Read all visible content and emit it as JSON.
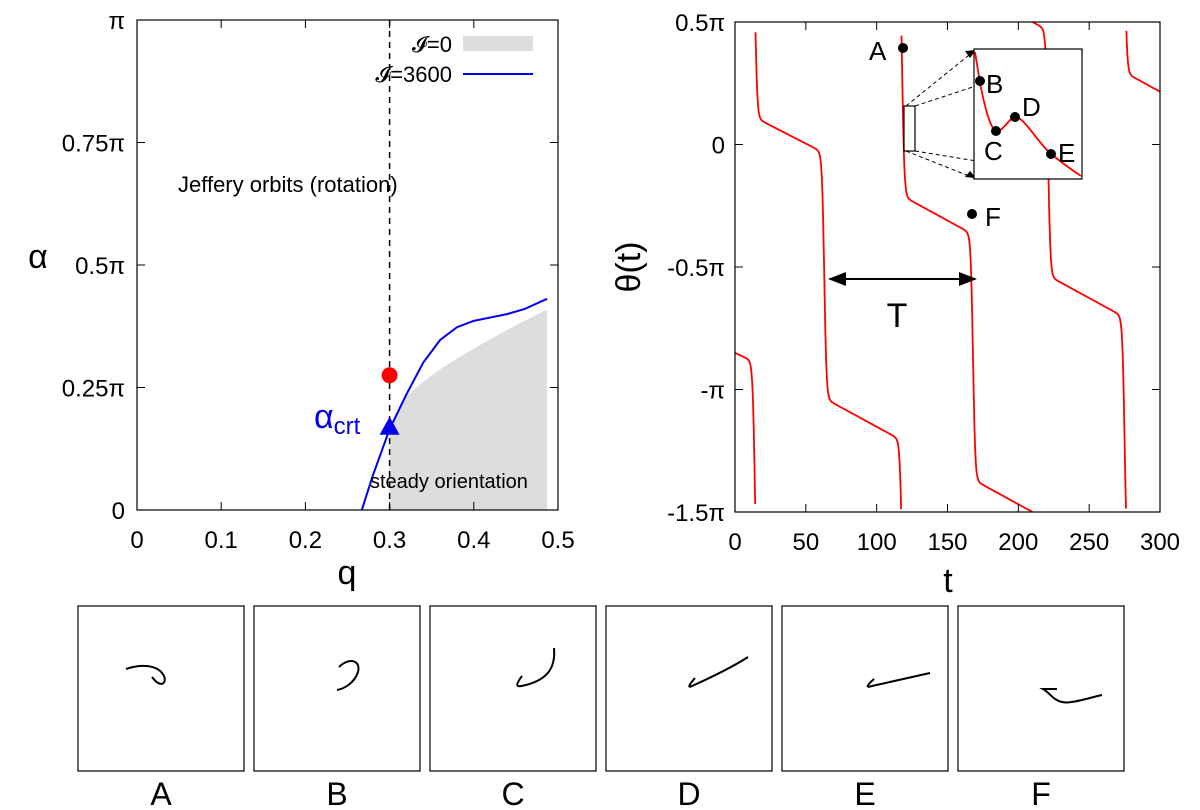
{
  "colors": {
    "steady_region": "#dddddd",
    "inertial_curve": "#0000ee",
    "theta_curve": "#ff0000",
    "red_marker": "#ff0000",
    "crt_marker": "#0000ee"
  },
  "chart_data": [
    {
      "type": "area",
      "xlabel": "q",
      "ylabel": "α",
      "xlim": [
        0,
        0.5
      ],
      "ylim": [
        0,
        1
      ],
      "y_unit": "π",
      "x_ticks": [
        "0",
        "0.1",
        "0.2",
        "0.3",
        "0.4",
        "0.5"
      ],
      "y_ticks": [
        "0",
        "0.25π",
        "0.5π",
        "0.75π",
        "π"
      ],
      "legend_position": "top-right",
      "series": [
        {
          "name": "𝓘=0",
          "kind": "filled-region",
          "x": [
            0.3,
            0.32,
            0.34,
            0.36,
            0.38,
            0.4,
            0.42,
            0.44,
            0.46,
            0.48,
            0.487
          ],
          "y": [
            0.165,
            0.233,
            0.262,
            0.287,
            0.309,
            0.329,
            0.349,
            0.368,
            0.386,
            0.403,
            0.409
          ]
        },
        {
          "name": "𝓘=3600",
          "kind": "line",
          "x": [
            0.267,
            0.28,
            0.3,
            0.32,
            0.34,
            0.36,
            0.38,
            0.4,
            0.42,
            0.44,
            0.46,
            0.487
          ],
          "y": [
            0,
            0.07,
            0.165,
            0.236,
            0.301,
            0.347,
            0.373,
            0.386,
            0.393,
            0.4,
            0.41,
            0.431
          ]
        }
      ],
      "annotations": {
        "jeffery": "Jeffery orbits (rotation)",
        "steady": "steady orientation",
        "crt_label_main": "α",
        "crt_label_sub": "crt"
      },
      "dashed_line_q": 0.3,
      "red_point": {
        "q": 0.3,
        "alpha": 0.275
      },
      "crt_point": {
        "q": 0.3,
        "alpha": 0.17
      }
    },
    {
      "type": "line",
      "xlabel": "t",
      "ylabel": "θ(t)",
      "xlim": [
        0,
        300
      ],
      "ylim": [
        -1.5,
        0.5
      ],
      "y_unit": "π",
      "x_ticks": [
        "0",
        "50",
        "100",
        "150",
        "200",
        "250",
        "300"
      ],
      "y_ticks": [
        "0.5π",
        "0",
        "-0.5π",
        "-π",
        "-1.5π"
      ],
      "period_label": "T",
      "period_t": [
        63,
        168
      ],
      "points": [
        {
          "label": "A",
          "t": 118,
          "theta": 0.395
        },
        {
          "label": "F",
          "t": 168,
          "theta": -0.275
        }
      ],
      "inset_points": [
        "B",
        "C",
        "D",
        "E"
      ]
    }
  ],
  "snapshots": {
    "labels": [
      "A",
      "B",
      "C",
      "D",
      "E",
      "F"
    ]
  }
}
